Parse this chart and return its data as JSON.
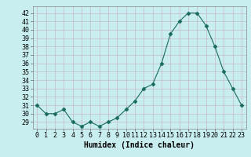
{
  "x": [
    0,
    1,
    2,
    3,
    4,
    5,
    6,
    7,
    8,
    9,
    10,
    11,
    12,
    13,
    14,
    15,
    16,
    17,
    18,
    19,
    20,
    21,
    22,
    23
  ],
  "y": [
    31,
    30,
    30,
    30.5,
    29,
    28.5,
    29,
    28.5,
    29,
    29.5,
    30.5,
    31.5,
    33,
    33.5,
    36,
    39.5,
    41,
    42,
    42,
    40.5,
    38,
    35,
    33,
    31
  ],
  "line_color": "#1a6b5e",
  "marker": "D",
  "marker_size": 2.5,
  "background_color": "#c8eef0",
  "grid_color": "#c8b8c8",
  "xlabel": "Humidex (Indice chaleur)",
  "ylim": [
    28.2,
    42.8
  ],
  "xlim": [
    -0.5,
    23.5
  ],
  "yticks": [
    29,
    30,
    31,
    32,
    33,
    34,
    35,
    36,
    37,
    38,
    39,
    40,
    41,
    42
  ],
  "xticks": [
    0,
    1,
    2,
    3,
    4,
    5,
    6,
    7,
    8,
    9,
    10,
    11,
    12,
    13,
    14,
    15,
    16,
    17,
    18,
    19,
    20,
    21,
    22,
    23
  ],
  "xlabel_fontsize": 7,
  "tick_fontsize": 6
}
